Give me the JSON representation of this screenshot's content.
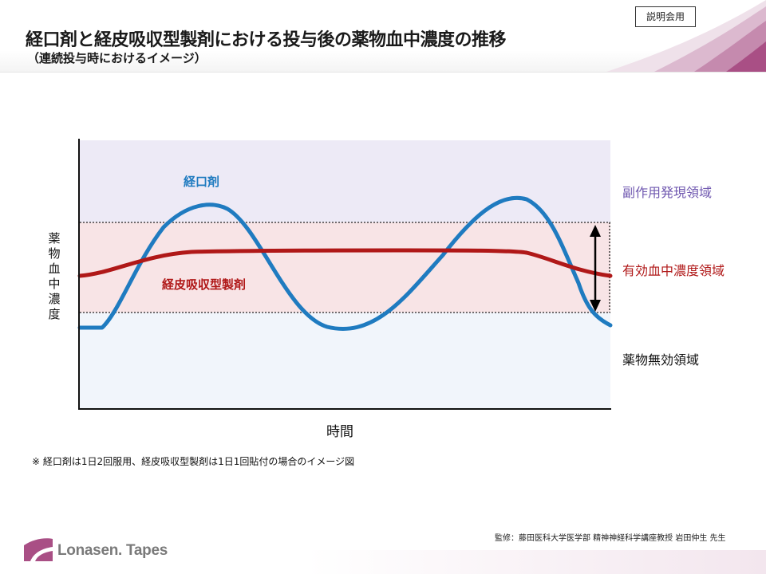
{
  "header": {
    "badge": "説明会用",
    "title": "経口剤と経皮吸収型製剤における投与後の薬物血中濃度の推移",
    "subtitle": "（連続投与時におけるイメージ）"
  },
  "chart": {
    "ylabel": "薬\n物\n血\n中\n濃\n度",
    "xlabel": "時間",
    "zones": {
      "side_effect": "副作用発現領域",
      "effective": "有効血中濃度領域",
      "ineffective": "薬物無効領域"
    },
    "series_labels": {
      "oral": "経口剤",
      "patch": "経皮吸収型製剤"
    },
    "colors": {
      "side_effect_zone": "#edeaf6",
      "effective_zone": "#f8e4e6",
      "ineffective_zone": "#f1f5fb",
      "oral_line": "#1f7bc0",
      "patch_line": "#b01818"
    }
  },
  "footnote": "※ 経口剤は1日2回服用、経皮吸収型製剤は1日1回貼付の場合のイメージ図",
  "supervisor": "監修：藤田医科大学医学部 精神神経科学講座教授 岩田仲生 先生",
  "brand": {
    "logo_text": "Lonasen. Tapes"
  }
}
